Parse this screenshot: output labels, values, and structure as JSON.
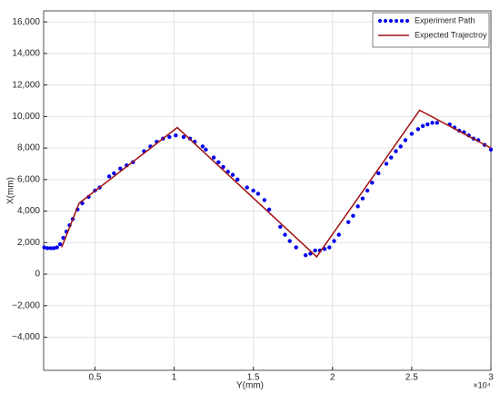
{
  "chart_data": {
    "type": "line",
    "x_label": "Y(mm)",
    "y_label": "X(mm)",
    "x_multiplier": "×10⁴",
    "xlim": [
      1760,
      30000
    ],
    "xticks": [
      {
        "value": 5000,
        "label": "0.5"
      },
      {
        "value": 10000,
        "label": "1"
      },
      {
        "value": 15000,
        "label": "1.5"
      },
      {
        "value": 20000,
        "label": "2"
      },
      {
        "value": 25000,
        "label": "2.5"
      },
      {
        "value": 30000,
        "label": "3"
      }
    ],
    "ylim": [
      -6100,
      16700
    ],
    "yticks": [
      {
        "value": -4000,
        "label": "−4,000"
      },
      {
        "value": -2000,
        "label": "−2,000"
      },
      0,
      {
        "value": 2000,
        "label": "2,000"
      },
      {
        "value": 4000,
        "label": "4,000"
      },
      {
        "value": 6000,
        "label": "6,000"
      },
      {
        "value": 8000,
        "label": "8,000"
      },
      {
        "value": 10000,
        "label": "10,000"
      },
      {
        "value": 12000,
        "label": "12,000"
      },
      {
        "value": 14000,
        "label": "14,000"
      },
      {
        "value": 16000,
        "label": "16,000"
      }
    ],
    "grid": true,
    "legend": "top-right",
    "series": [
      {
        "name": "Experiment Path",
        "color": "#0000ee",
        "style": "dots",
        "x": [
          1800,
          2000,
          2200,
          2400,
          2600,
          2800,
          3000,
          3200,
          3400,
          3600,
          3900,
          4200,
          4600,
          5000,
          5300,
          5900,
          6200,
          6600,
          7000,
          7400,
          8100,
          8500,
          8900,
          9300,
          9700,
          10100,
          10600,
          11000,
          11300,
          11800,
          12000,
          12500,
          12800,
          13100,
          13400,
          13700,
          14000,
          14600,
          15000,
          15300,
          15700,
          16000,
          16700,
          17000,
          17300,
          17700,
          18300,
          18600,
          18900,
          19200,
          19500,
          19800,
          20100,
          20400,
          21000,
          21300,
          21600,
          21900,
          22200,
          22500,
          22900,
          23400,
          23700,
          24000,
          24300,
          24600,
          25000,
          25400,
          25700,
          26000,
          26300,
          26600,
          27400,
          27700,
          28000,
          28300,
          28600,
          28900,
          29200,
          29600,
          30000
        ],
        "values": [
          1700,
          1650,
          1650,
          1650,
          1700,
          1900,
          2300,
          2700,
          3100,
          3500,
          4100,
          4500,
          4900,
          5300,
          5500,
          6200,
          6400,
          6700,
          6900,
          7100,
          7800,
          8100,
          8400,
          8600,
          8700,
          8800,
          8700,
          8600,
          8400,
          8100,
          7900,
          7400,
          7100,
          6800,
          6500,
          6300,
          6000,
          5500,
          5300,
          5100,
          4700,
          4100,
          3000,
          2500,
          2100,
          1700,
          1200,
          1300,
          1500,
          1500,
          1600,
          1700,
          2100,
          2500,
          3300,
          3700,
          4300,
          4800,
          5300,
          5800,
          6400,
          7000,
          7400,
          7800,
          8100,
          8500,
          8900,
          9200,
          9400,
          9500,
          9600,
          9600,
          9500,
          9300,
          9100,
          9000,
          8800,
          8600,
          8500,
          8200,
          7900
        ]
      },
      {
        "name": "Expected Trajectroy",
        "color": "#a01010",
        "style": "line",
        "x": [
          2900,
          4000,
          10200,
          19000,
          25500,
          30000
        ],
        "values": [
          1700,
          4500,
          9300,
          1100,
          10400,
          8000
        ]
      }
    ]
  }
}
